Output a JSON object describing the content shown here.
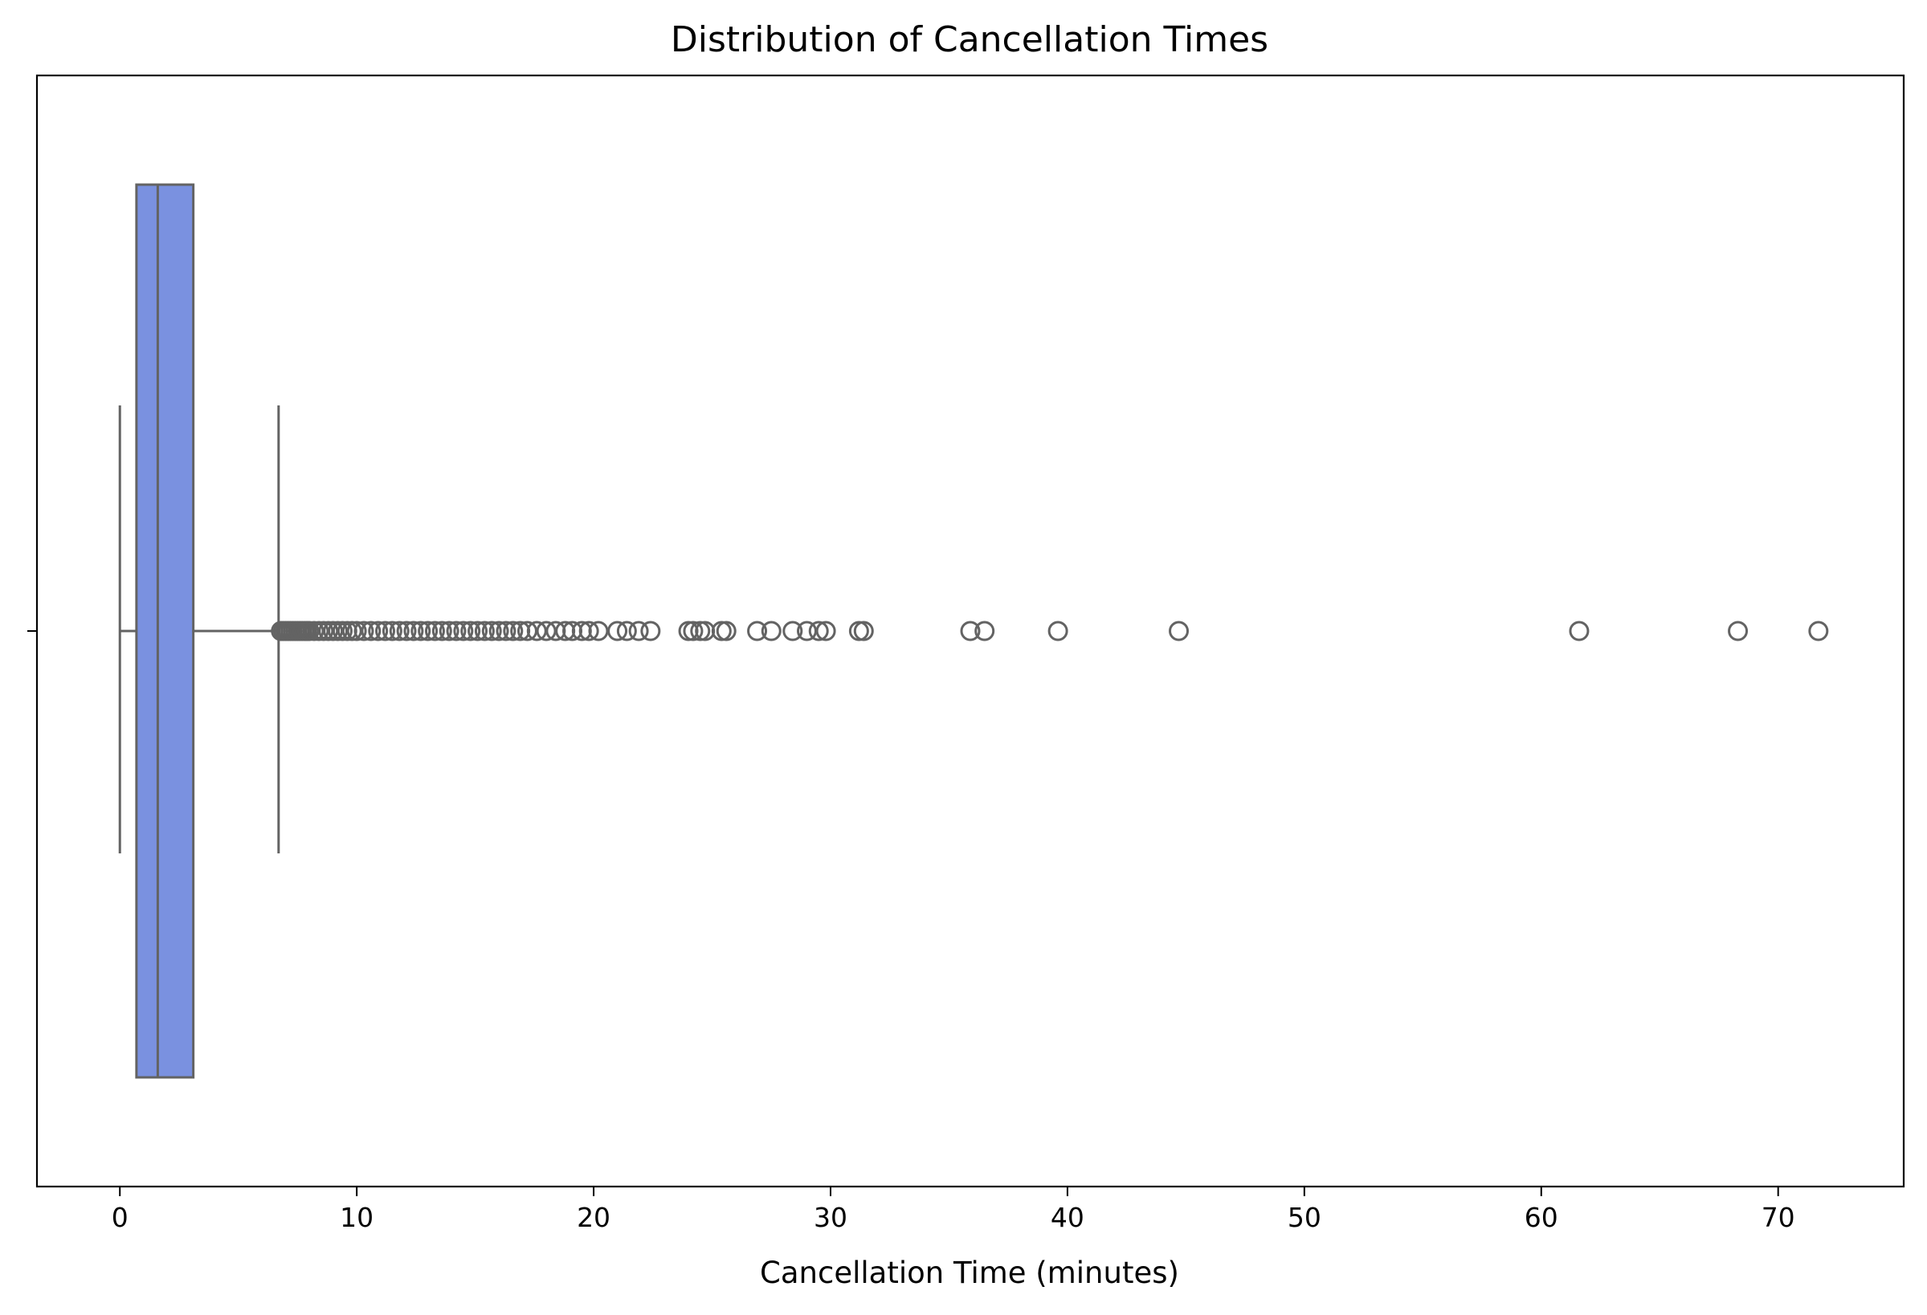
{
  "chart_data": {
    "type": "box",
    "orientation": "horizontal",
    "title": "Distribution of Cancellation Times",
    "xlabel": "Cancellation Time (minutes)",
    "ylabel": "",
    "xlim": [
      -3.5,
      75.3
    ],
    "xticks": [
      0,
      10,
      20,
      30,
      40,
      50,
      60,
      70
    ],
    "xtick_labels": [
      "0",
      "10",
      "20",
      "30",
      "40",
      "50",
      "60",
      "70"
    ],
    "grid": false,
    "legend": "none",
    "box": {
      "whisker_low": 0.0,
      "q1": 0.7,
      "median": 1.6,
      "q3": 3.1,
      "whisker_high": 6.7
    },
    "outliers": [
      6.8,
      6.9,
      7.0,
      7.1,
      7.2,
      7.3,
      7.4,
      7.5,
      7.6,
      7.7,
      7.8,
      7.9,
      8.0,
      8.2,
      8.4,
      8.6,
      8.8,
      9.0,
      9.2,
      9.4,
      9.6,
      9.8,
      10.0,
      10.3,
      10.6,
      10.9,
      11.2,
      11.5,
      11.8,
      12.1,
      12.4,
      12.7,
      13.0,
      13.3,
      13.6,
      13.9,
      14.2,
      14.5,
      14.8,
      15.1,
      15.4,
      15.7,
      16.0,
      16.3,
      16.6,
      16.9,
      17.2,
      17.6,
      18.0,
      18.4,
      18.8,
      19.1,
      19.5,
      19.8,
      20.2,
      21.0,
      21.4,
      21.9,
      22.4,
      24.0,
      24.2,
      24.5,
      24.7,
      25.4,
      25.6,
      26.9,
      27.5,
      28.4,
      29.0,
      29.5,
      29.8,
      31.2,
      31.4,
      35.9,
      36.5,
      39.6,
      44.7,
      61.6,
      68.3,
      71.7
    ],
    "colors": {
      "box_fill": "#7a91e0",
      "line": "#636363"
    }
  }
}
